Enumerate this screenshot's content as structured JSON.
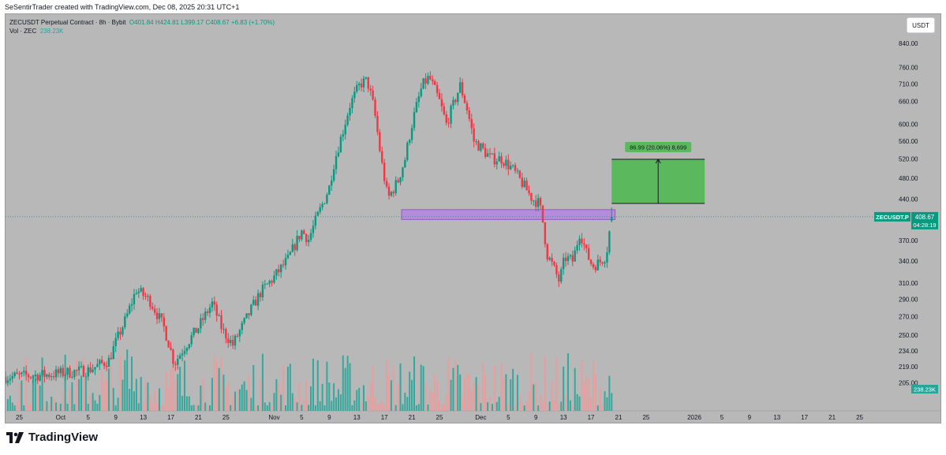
{
  "credit": "SeSentirTrader created with TradingView.com, Dec 08, 2025 20:31 UTC+1",
  "legend": {
    "symbol_line": "ZECUSDT Perpetual Contract · 8h · Bybit",
    "ohlc": "O401.84  H424.81  L399.17  C408.67  +6.83 (+1.70%)",
    "vol_label": "Vol · ZEC",
    "vol_value": "238.23K"
  },
  "currency_button": "USDT",
  "brand": "TradingView",
  "colors": {
    "background": "#b8b8b8",
    "up": "#089981",
    "down": "#f23645",
    "vol_up": "#26a69a",
    "vol_down": "#ef9a9a",
    "zone": "#b58cdc",
    "target": "#5cb85c"
  },
  "chart_data": {
    "type": "candlestick",
    "symbol": "ZECUSDT.P",
    "timeframe": "8h",
    "exchange": "Bybit",
    "y_scale": "log",
    "ylim": [
      198,
      900
    ],
    "y_ticks": [
      "840.00",
      "760.00",
      "710.00",
      "660.00",
      "600.00",
      "560.00",
      "520.00",
      "480.00",
      "440.00",
      "370.00",
      "340.00",
      "310.00",
      "290.00",
      "270.00",
      "250.00",
      "234.00",
      "219.00",
      "205.00"
    ],
    "y_tick_values": [
      840,
      760,
      710,
      660,
      600,
      560,
      520,
      480,
      440,
      370,
      340,
      310,
      290,
      270,
      250,
      234,
      219,
      205
    ],
    "x_ticks": [
      "25",
      "Oct",
      "5",
      "9",
      "13",
      "17",
      "21",
      "25",
      "Nov",
      "5",
      "9",
      "13",
      "17",
      "21",
      "25",
      "Dec",
      "5",
      "9",
      "13",
      "17",
      "21",
      "25",
      "2026",
      "5",
      "9",
      "13",
      "17",
      "21",
      "25"
    ],
    "x_tick_days": [
      -6,
      0,
      4,
      8,
      12,
      16,
      20,
      24,
      31,
      35,
      39,
      43,
      47,
      51,
      55,
      61,
      65,
      69,
      73,
      77,
      81,
      85,
      92,
      96,
      100,
      104,
      108,
      112,
      116
    ],
    "x_range_days": [
      -8,
      118
    ],
    "price_path": [
      [
        -8,
        210
      ],
      [
        -2,
        212
      ],
      [
        4,
        216
      ],
      [
        7,
        225
      ],
      [
        9.5,
        268
      ],
      [
        11,
        302
      ],
      [
        13,
        288
      ],
      [
        15,
        258
      ],
      [
        16.5,
        222
      ],
      [
        18,
        238
      ],
      [
        20,
        258
      ],
      [
        22,
        285
      ],
      [
        23.5,
        255
      ],
      [
        25,
        240
      ],
      [
        27,
        268
      ],
      [
        29,
        298
      ],
      [
        31,
        318
      ],
      [
        33,
        342
      ],
      [
        35,
        385
      ],
      [
        36,
        372
      ],
      [
        38,
        430
      ],
      [
        39,
        462
      ],
      [
        39.5,
        500
      ],
      [
        41,
        585
      ],
      [
        42,
        650
      ],
      [
        43.5,
        710
      ],
      [
        44.5,
        720
      ],
      [
        45.5,
        640
      ],
      [
        46.5,
        520
      ],
      [
        47.5,
        440
      ],
      [
        49,
        475
      ],
      [
        50,
        520
      ],
      [
        51,
        600
      ],
      [
        52.5,
        705
      ],
      [
        53.5,
        730
      ],
      [
        55,
        660
      ],
      [
        56,
        600
      ],
      [
        57,
        650
      ],
      [
        58,
        705
      ],
      [
        59,
        640
      ],
      [
        60,
        560
      ],
      [
        61,
        545
      ],
      [
        62.5,
        520
      ],
      [
        64,
        520
      ],
      [
        65.5,
        500
      ],
      [
        67,
        470
      ],
      [
        68.5,
        440
      ],
      [
        69.5,
        432
      ],
      [
        70,
        400
      ],
      [
        70.6,
        350
      ],
      [
        71.5,
        332
      ],
      [
        72.4,
        312
      ],
      [
        73.2,
        345
      ],
      [
        74.4,
        340
      ],
      [
        75.4,
        385
      ],
      [
        76.3,
        352
      ],
      [
        77.2,
        333
      ],
      [
        78.2,
        338
      ],
      [
        79.2,
        348
      ],
      [
        79.7,
        386
      ],
      [
        80.2,
        408.67
      ]
    ],
    "last_price": "408.67",
    "last_price_label": "ZECUSDT.P",
    "countdown": "04:28:19",
    "volume_last": "238.23K",
    "volume_ratio_range": [
      0.06,
      0.92
    ],
    "support_zone": {
      "from_day": 49.5,
      "to_day": 80.5,
      "low": 404,
      "high": 421
    },
    "target_box": {
      "from_day": 80,
      "to_day": 93.5,
      "low": 432,
      "high": 519,
      "label": "86.99 (20.06%) 8,699"
    }
  }
}
